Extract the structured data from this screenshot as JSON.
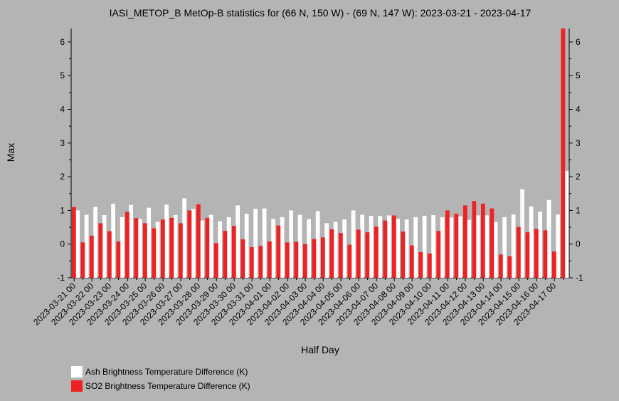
{
  "chart_data": {
    "type": "bar",
    "title": "IASI_METOP_B MetOp-B statistics for (66 N, 150 W) - (69 N, 147 W): 2023-03-21 - 2023-04-17",
    "xlabel": "Half Day",
    "ylabel": "Max",
    "ylim": [
      -1,
      6.4
    ],
    "yticks": [
      -1,
      0,
      1,
      2,
      3,
      4,
      5,
      6
    ],
    "grid": false,
    "legend_position": "bottom-left",
    "x_tick_labels": [
      "2023-03-21 00",
      "2023-03-22 00",
      "2023-03-23 00",
      "2023-03-24 00",
      "2023-03-25 00",
      "2023-03-26 00",
      "2023-03-27 00",
      "2023-03-28 00",
      "2023-03-29 00",
      "2023-03-30 00",
      "2023-03-31 00",
      "2023-04-01 00",
      "2023-04-02 00",
      "2023-04-03 00",
      "2023-04-04 00",
      "2023-04-05 00",
      "2023-04-06 00",
      "2023-04-07 00",
      "2023-04-08 00",
      "2023-04-09 00",
      "2023-04-10 00",
      "2023-04-11 00",
      "2023-04-12 00",
      "2023-04-13 00",
      "2023-04-14 00",
      "2023-04-15 00",
      "2023-04-16 00",
      "2023-04-17 00"
    ],
    "series": [
      {
        "name": "Ash Brightness Temperature Difference (K)",
        "color": "#ffffff",
        "values": [
          1.0,
          0.87,
          1.1,
          0.86,
          1.2,
          0.8,
          1.16,
          0.75,
          1.08,
          0.66,
          1.17,
          0.86,
          1.36,
          1.04,
          0.7,
          0.87,
          0.68,
          0.8,
          1.15,
          0.9,
          1.05,
          1.06,
          0.75,
          0.8,
          1.0,
          0.87,
          0.74,
          0.98,
          0.62,
          0.66,
          0.73,
          1.0,
          0.87,
          0.84,
          0.84,
          0.85,
          0.75,
          0.73,
          0.8,
          0.84,
          0.86,
          0.8,
          0.79,
          0.82,
          0.72,
          0.85,
          0.85,
          0.66,
          0.8,
          0.88,
          1.63,
          1.12,
          0.96,
          1.31,
          0.88,
          2.17
        ]
      },
      {
        "name": "SO2 Brightness Temperature Difference (K)",
        "color": "#ee2222",
        "values": [
          1.1,
          0.05,
          0.25,
          0.62,
          0.38,
          0.08,
          0.96,
          0.77,
          0.62,
          0.47,
          0.73,
          0.78,
          0.62,
          1.0,
          1.18,
          0.78,
          0.03,
          0.39,
          0.54,
          0.14,
          -0.09,
          -0.05,
          0.08,
          0.55,
          0.05,
          0.07,
          0.0,
          0.15,
          0.2,
          0.44,
          0.33,
          -0.02,
          0.43,
          0.35,
          0.52,
          0.7,
          0.85,
          0.37,
          -0.04,
          -0.24,
          -0.28,
          0.39,
          1.0,
          0.9,
          1.15,
          1.28,
          1.2,
          1.06,
          -0.31,
          -0.36,
          0.51,
          0.35,
          0.45,
          0.41,
          -0.22,
          6.45
        ]
      }
    ]
  }
}
